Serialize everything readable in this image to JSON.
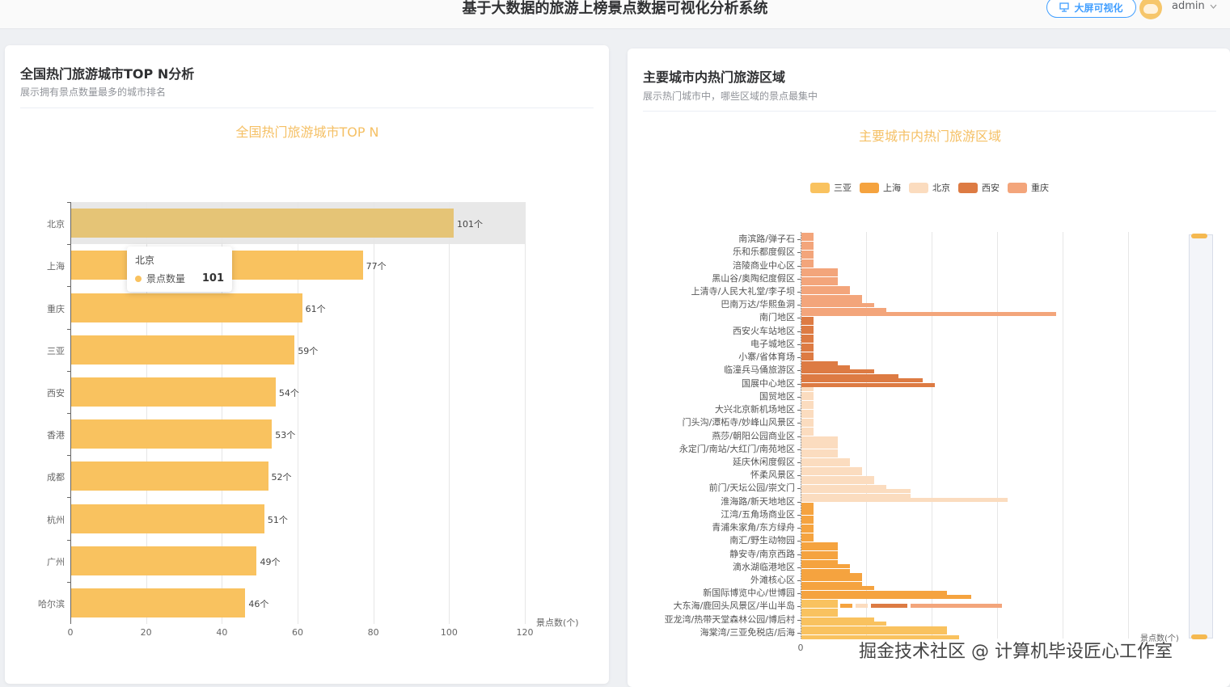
{
  "header": {
    "app_title": "基于大数据的旅游上榜景点数据可视化分析系统",
    "screen_button_label": "大屏可视化",
    "screen_button_icon": "monitor-icon",
    "username": "admin",
    "user_dropdown_icon": "chevron-down-icon"
  },
  "left_card": {
    "title": "全国热门旅游城市TOP N分析",
    "subtitle": "展示拥有景点数量最多的城市排名"
  },
  "right_card": {
    "title": "主要城市内热门旅游区域",
    "subtitle": "展示热门城市中，哪些区域的景点最集中"
  },
  "tooltip": {
    "city": "北京",
    "series": "景点数量",
    "value": "101"
  },
  "colors": {
    "bar": "#f9c25f",
    "chart_title": "#f5c065",
    "accent_blue": "#409eff",
    "sanya": "#f9c25f",
    "shanghai": "#f5a33f",
    "beijing": "#fbdcbf",
    "xian": "#dd7b43",
    "chongqing": "#f3a57b"
  },
  "chart_data": [
    {
      "type": "bar",
      "orientation": "horizontal",
      "title": "全国热门旅游城市TOP N",
      "xlabel": "景点数(个)",
      "ylabel": "",
      "xlim": [
        0,
        120
      ],
      "xticks": [
        "0",
        "20",
        "40",
        "60",
        "80",
        "100",
        "120"
      ],
      "categories": [
        "北京",
        "上海",
        "重庆",
        "三亚",
        "西安",
        "香港",
        "成都",
        "杭州",
        "广州",
        "哈尔滨"
      ],
      "values": [
        101,
        77,
        61,
        59,
        54,
        53,
        52,
        51,
        49,
        46
      ],
      "labels": [
        "101个",
        "77个",
        "61个",
        "59个",
        "54个",
        "53个",
        "52个",
        "51个",
        "49个",
        "46个"
      ],
      "series_name": "景点数量",
      "grid": true,
      "highlighted": "北京"
    },
    {
      "type": "bar",
      "orientation": "horizontal",
      "title": "主要城市内热门旅游区域",
      "xlabel": "景点数(个)",
      "xticks": [
        "0"
      ],
      "legend": [
        "三亚",
        "上海",
        "北京",
        "西安",
        "重庆"
      ],
      "legend_position": "top",
      "grid": true,
      "y_labels_shown": [
        "南滨路/弹子石",
        "乐和乐都度假区",
        "涪陵商业中心区",
        "黑山谷/奥陶纪度假区",
        "上清寺/人民大礼堂/李子坝",
        "巴南万达/华熙鱼洞",
        "南门地区",
        "西安火车站地区",
        "电子城地区",
        "小寨/省体育场",
        "临潼兵马俑旅游区",
        "国展中心地区",
        "国贸地区",
        "大兴北京新机场地区",
        "门头沟/潭柘寺/妙峰山风景区",
        "燕莎/朝阳公园商业区",
        "永定门/南站/大红门/南苑地区",
        "延庆休闲度假区",
        "怀柔风景区",
        "前门/天坛公园/崇文门",
        "淮海路/新天地地区",
        "江湾/五角场商业区",
        "青浦朱家角/东方绿舟",
        "南汇/野生动物园",
        "静安寺/南京西路",
        "滴水湖临港地区",
        "外滩核心区",
        "新国际博览中心/世博园",
        "大东海/鹿回头风景区/半山半岛",
        "亚龙湾/热带天堂森林公园/博后村",
        "海棠湾/三亚免税店/后海"
      ],
      "series": [
        {
          "name": "重庆",
          "values": [
            1,
            1,
            1,
            1,
            1,
            1,
            1,
            1,
            3,
            3,
            3,
            3,
            4,
            4,
            5,
            5,
            6,
            7,
            21
          ]
        },
        {
          "name": "西安",
          "values": [
            1,
            1,
            1,
            1,
            1,
            1,
            1,
            1,
            1,
            1,
            3,
            4,
            6,
            8,
            10,
            11
          ]
        },
        {
          "name": "北京",
          "values": [
            1,
            1,
            1,
            1,
            1,
            1,
            1,
            1,
            1,
            1,
            1,
            3,
            3,
            3,
            3,
            3,
            4,
            4,
            5,
            5,
            6,
            6,
            7,
            9,
            9,
            17
          ]
        },
        {
          "name": "上海",
          "values": [
            1,
            1,
            1,
            1,
            1,
            1,
            1,
            1,
            1,
            3,
            3,
            3,
            3,
            3,
            4,
            4,
            5,
            5,
            5,
            6,
            12,
            14
          ]
        },
        {
          "name": "三亚",
          "values": [
            3,
            3,
            3,
            6,
            7,
            12,
            12,
            13
          ]
        }
      ],
      "mixed_row": {
        "label_near": "大东海/鹿回头风景区/半山半岛",
        "segments": [
          {
            "name": "上海",
            "value": 1
          },
          {
            "name": "北京",
            "value": 1
          },
          {
            "name": "西安",
            "value": 3
          },
          {
            "name": "重庆",
            "value": 5
          }
        ]
      },
      "dataZoom": "vertical slider"
    }
  ],
  "watermark": "掘金技术社区 @ 计算机毕设匠心工作室"
}
